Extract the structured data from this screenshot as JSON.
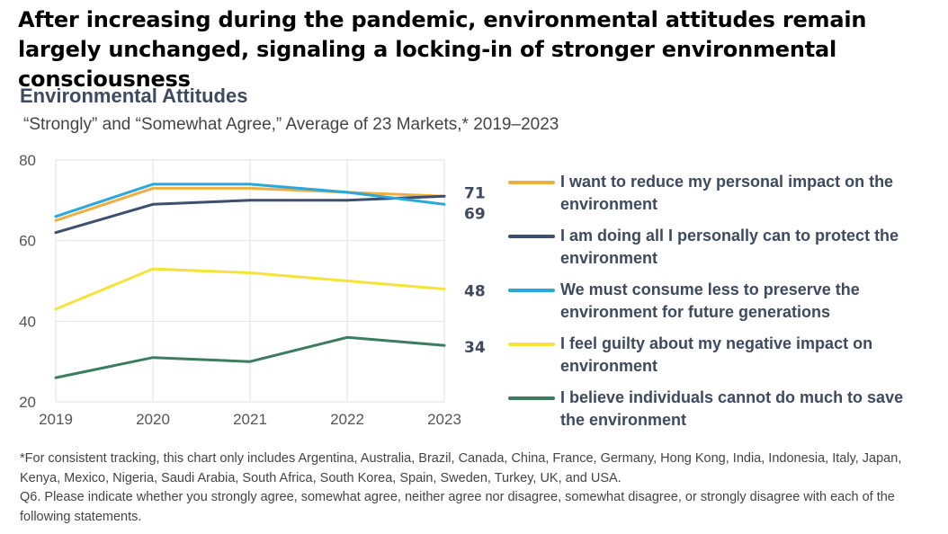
{
  "headline": "After increasing during the pandemic, environmental attitudes remain largely unchanged, signaling a locking-in of stronger environmental consciousness",
  "chart_data": {
    "type": "line",
    "title": "Environmental Attitudes",
    "subtitle": "“Strongly” and “Somewhat Agree,” Average of 23 Markets,* 2019–2023",
    "x": [
      "2019",
      "2020",
      "2021",
      "2022",
      "2023"
    ],
    "ylim": [
      20,
      80
    ],
    "yticks": [
      20,
      40,
      60,
      80
    ],
    "grid": true,
    "legend_position": "right",
    "series": [
      {
        "name": "I want to reduce my personal impact on the environment",
        "color": "#f0ae3f",
        "values": [
          65,
          73,
          73,
          72,
          71
        ],
        "end_label": "71"
      },
      {
        "name": "I am doing all I personally can to protect the environment",
        "color": "#3d4f6e",
        "values": [
          62,
          69,
          70,
          70,
          71
        ],
        "end_label": ""
      },
      {
        "name": "We must consume less to preserve the environment for future generations",
        "color": "#2aa8dc",
        "values": [
          66,
          74,
          74,
          72,
          69
        ],
        "end_label": "69"
      },
      {
        "name": "I feel guilty about my negative impact on environment",
        "color": "#f7e23a",
        "values": [
          43,
          53,
          52,
          50,
          48
        ],
        "end_label": "48"
      },
      {
        "name": "I believe individuals cannot do much to save the environment",
        "color": "#3b7d5e",
        "values": [
          26,
          31,
          30,
          36,
          34
        ],
        "end_label": "34"
      }
    ]
  },
  "footnote": {
    "markets": "*For consistent tracking, this chart only includes Argentina, Australia, Brazil, Canada, China, France, Germany, Hong Kong, India, Indonesia, Italy, Japan, Kenya, Mexico, Nigeria, Saudi Arabia, South Africa, South Korea, Spain, Sweden, Turkey, UK, and USA.",
    "question": "Q6. Please indicate whether you strongly agree, somewhat agree, neither agree nor disagree, somewhat disagree, or strongly disagree with each of the following statements."
  }
}
